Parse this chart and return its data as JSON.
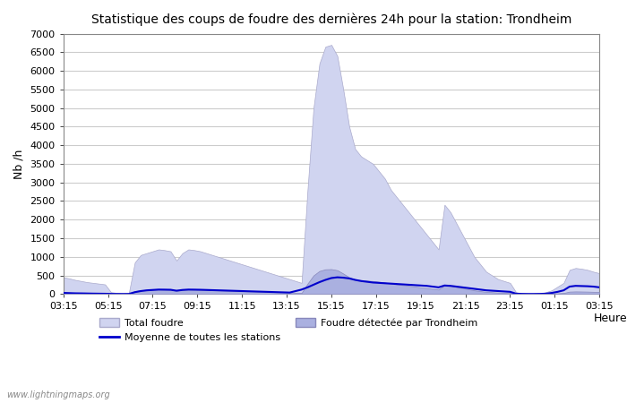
{
  "title": "Statistique des coups de foudre des dernières 24h pour la station: Trondheim",
  "ylabel": "Nb /h",
  "xlabel": "Heure",
  "watermark": "www.lightningmaps.org",
  "ylim": [
    0,
    7000
  ],
  "yticks": [
    0,
    500,
    1000,
    1500,
    2000,
    2500,
    3000,
    3500,
    4000,
    4500,
    5000,
    5500,
    6000,
    6500,
    7000
  ],
  "xtick_labels": [
    "03:15",
    "05:15",
    "07:15",
    "09:15",
    "11:15",
    "13:15",
    "15:15",
    "17:15",
    "19:15",
    "21:15",
    "23:15",
    "01:15",
    "03:15"
  ],
  "background_color": "#ffffff",
  "plot_bg_color": "#ffffff",
  "grid_color": "#cccccc",
  "total_foudre_color": "#d0d4f0",
  "total_foudre_edge": "#aaaacc",
  "trondheim_color": "#aab0e0",
  "trondheim_edge": "#8888bb",
  "moyenne_color": "#0000cc",
  "legend_total_label": "Total foudre",
  "legend_moyenne_label": "Moyenne de toutes les stations",
  "legend_trondheim_label": "Foudre détectée par Trondheim",
  "total_foudre": [
    450,
    420,
    380,
    350,
    320,
    300,
    280,
    260,
    50,
    30,
    20,
    30,
    850,
    1050,
    1100,
    1150,
    1200,
    1180,
    1150,
    900,
    1100,
    1200,
    1180,
    1150,
    1100,
    1050,
    1000,
    950,
    900,
    850,
    800,
    750,
    700,
    650,
    600,
    550,
    500,
    450,
    400,
    350,
    300,
    2800,
    5000,
    6200,
    6650,
    6700,
    6400,
    5500,
    4500,
    3900,
    3700,
    3600,
    3500,
    3300,
    3100,
    2800,
    2600,
    2400,
    2200,
    2000,
    1800,
    1600,
    1400,
    1200,
    2400,
    2200,
    1900,
    1600,
    1300,
    1000,
    800,
    600,
    500,
    400,
    350,
    300,
    50,
    10,
    5,
    5,
    10,
    50,
    100,
    200,
    300,
    650,
    700,
    680,
    650,
    600,
    560
  ],
  "trondheim": [
    50,
    40,
    30,
    25,
    20,
    18,
    15,
    12,
    5,
    3,
    2,
    3,
    80,
    100,
    110,
    115,
    120,
    118,
    115,
    90,
    110,
    120,
    118,
    115,
    110,
    105,
    100,
    95,
    90,
    85,
    80,
    75,
    70,
    65,
    60,
    55,
    50,
    45,
    40,
    35,
    30,
    280,
    500,
    620,
    665,
    670,
    640,
    550,
    450,
    390,
    370,
    360,
    350,
    330,
    310,
    280,
    260,
    240,
    220,
    200,
    180,
    160,
    140,
    120,
    240,
    220,
    190,
    160,
    130,
    100,
    80,
    60,
    50,
    40,
    35,
    30,
    5,
    1,
    0,
    0,
    1,
    5,
    10,
    20,
    30,
    65,
    70,
    68,
    65,
    60,
    56
  ],
  "moyenne": [
    30,
    25,
    20,
    18,
    15,
    12,
    10,
    8,
    5,
    3,
    2,
    3,
    50,
    80,
    100,
    110,
    120,
    118,
    115,
    90,
    110,
    120,
    118,
    115,
    110,
    105,
    100,
    95,
    90,
    85,
    80,
    75,
    70,
    65,
    60,
    55,
    50,
    45,
    40,
    80,
    120,
    180,
    250,
    320,
    380,
    430,
    450,
    440,
    420,
    380,
    350,
    330,
    310,
    300,
    290,
    280,
    270,
    260,
    250,
    240,
    230,
    220,
    200,
    180,
    230,
    220,
    200,
    180,
    160,
    140,
    120,
    100,
    90,
    80,
    70,
    60,
    10,
    5,
    3,
    3,
    5,
    10,
    30,
    60,
    100,
    200,
    220,
    215,
    210,
    200,
    180
  ]
}
